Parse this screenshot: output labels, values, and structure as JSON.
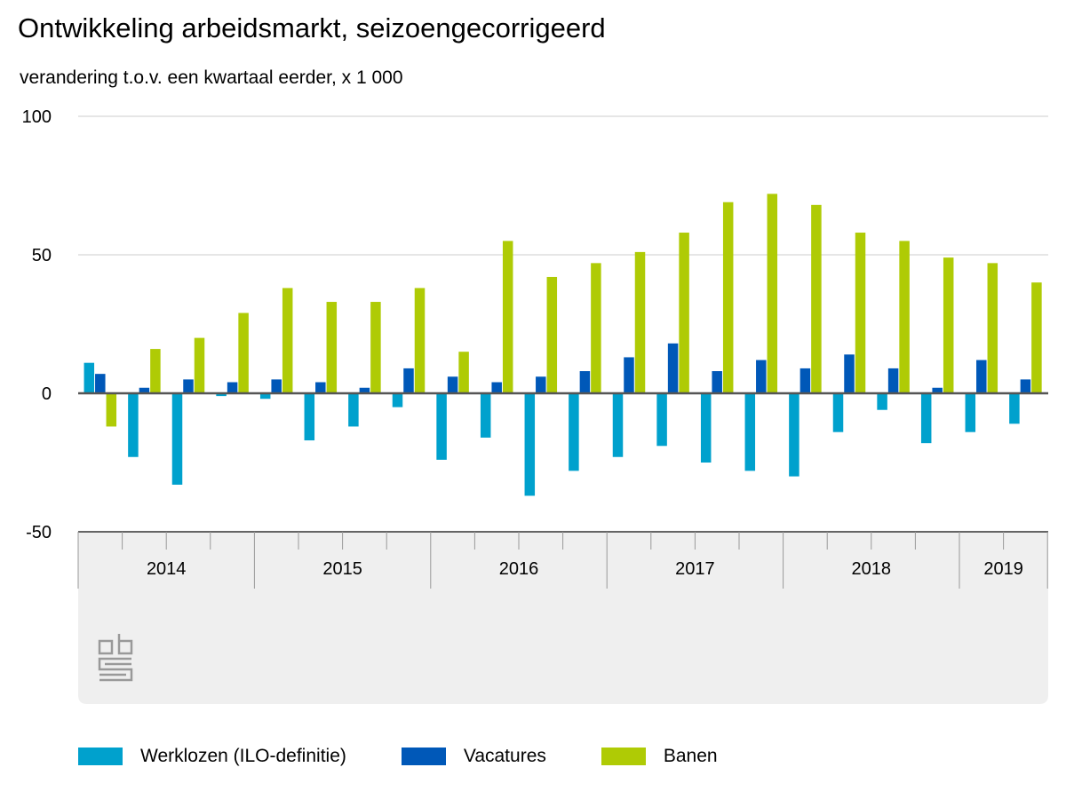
{
  "title": "Ontwikkeling arbeidsmarkt, seizoengecorrigeerd",
  "subtitle": "verandering t.o.v. een kwartaal eerder, x 1 000",
  "colors": {
    "werklozen": "#00a1cd",
    "vacatures": "#0058b8",
    "banen": "#afcb05",
    "panel": "#efefef",
    "grid": "#cccccc",
    "axis": "#666666"
  },
  "logo": {
    "name": "cbs-logo",
    "text": "cbs"
  },
  "chart_data": {
    "type": "bar",
    "ylim": [
      -50,
      100
    ],
    "yticks": [
      -50,
      0,
      50,
      100
    ],
    "grid": true,
    "legend_position": "bottom",
    "x": [
      "2014 K1",
      "2014 K2",
      "2014 K3",
      "2014 K4",
      "2015 K1",
      "2015 K2",
      "2015 K3",
      "2015 K4",
      "2016 K1",
      "2016 K2",
      "2016 K3",
      "2016 K4",
      "2017 K1",
      "2017 K2",
      "2017 K3",
      "2017 K4",
      "2018 K1",
      "2018 K2",
      "2018 K3",
      "2018 K4",
      "2019 K1",
      "2019 K2"
    ],
    "year_labels": [
      {
        "label": "2014",
        "quarters": 4
      },
      {
        "label": "2015",
        "quarters": 4
      },
      {
        "label": "2016",
        "quarters": 4
      },
      {
        "label": "2017",
        "quarters": 4
      },
      {
        "label": "2018",
        "quarters": 4
      },
      {
        "label": "2019",
        "quarters": 2
      }
    ],
    "series": [
      {
        "name": "Werklozen (ILO-definitie)",
        "key": "werklozen",
        "values": [
          11,
          -23,
          -33,
          -1,
          -2,
          -17,
          -12,
          -5,
          -24,
          -16,
          -37,
          -28,
          -23,
          -19,
          -25,
          -28,
          -30,
          -14,
          -6,
          -18,
          -14,
          -11
        ]
      },
      {
        "name": "Vacatures",
        "key": "vacatures",
        "values": [
          7,
          2,
          5,
          4,
          5,
          4,
          2,
          9,
          6,
          4,
          6,
          8,
          13,
          18,
          8,
          12,
          9,
          14,
          9,
          2,
          12,
          5
        ]
      },
      {
        "name": "Banen",
        "key": "banen",
        "values": [
          -12,
          16,
          20,
          29,
          38,
          33,
          33,
          38,
          15,
          55,
          42,
          47,
          51,
          58,
          69,
          72,
          68,
          58,
          55,
          49,
          47,
          40
        ]
      }
    ]
  }
}
